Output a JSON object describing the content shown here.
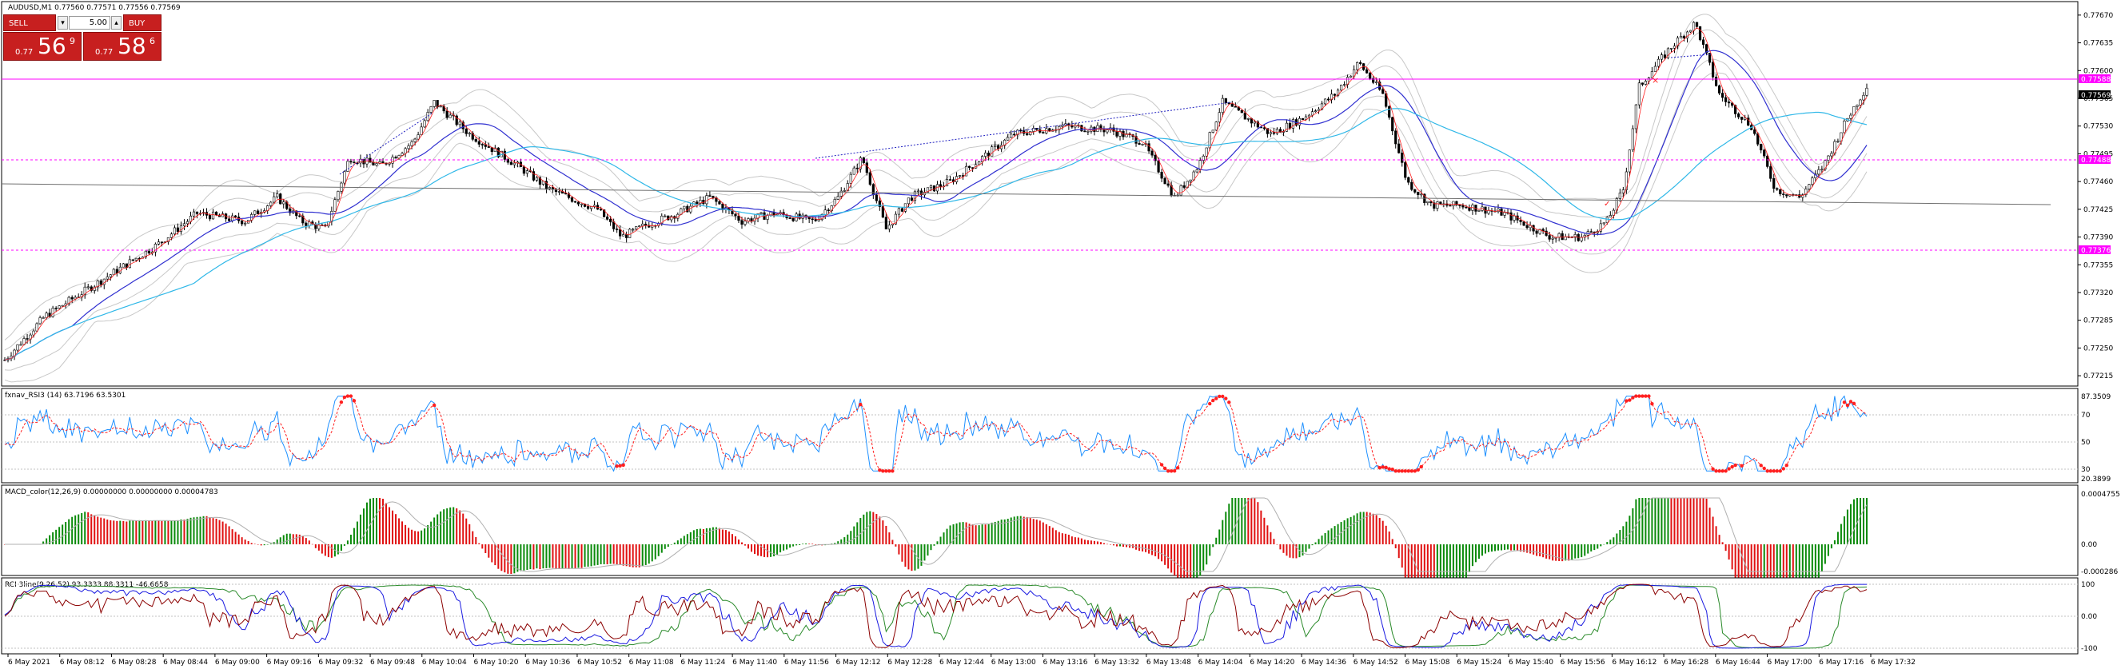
{
  "symbol_header": "AUDUSD,M1  0.77560 0.77571 0.77556 0.77569",
  "trade_panel": {
    "sell_label": "SELL",
    "buy_label": "BUY",
    "lot": "5.00",
    "minus": "▾",
    "plus": "▴",
    "bid": {
      "prefix": "0.77",
      "big": "56",
      "sup": "9"
    },
    "ask": {
      "prefix": "0.77",
      "big": "58",
      "sup": "6"
    }
  },
  "price_axis": [
    "0.77670",
    "0.77635",
    "0.77600",
    "0.77565",
    "0.77530",
    "0.77495",
    "0.77460",
    "0.77425",
    "0.77390",
    "0.77355",
    "0.77320",
    "0.77285",
    "0.77250",
    "0.77215"
  ],
  "price_tags": {
    "level_top": "0.77588",
    "current": "0.77569",
    "level_mid": "0.77488",
    "level_low": "0.77376"
  },
  "rsi": {
    "title": "fxnav_RSI3 (14) 63.7196 63.5301",
    "axis": [
      "87.3509",
      "70",
      "50",
      "30",
      "20.3899"
    ]
  },
  "macd": {
    "title": "MACD_color(12,26,9) 0.00000000 0.00000000 0.00004783",
    "axis": [
      "0.0004755",
      "0.00",
      "-0.000286"
    ]
  },
  "rci": {
    "title": "RCI 3line(9,26,52) 93.3333 88.3311 -46.6658",
    "axis": [
      "100",
      "0.00",
      "-100"
    ]
  },
  "time_axis": [
    "6 May 2021",
    "6 May 08:12",
    "6 May 08:28",
    "6 May 08:44",
    "6 May 09:00",
    "6 May 09:16",
    "6 May 09:32",
    "6 May 09:48",
    "6 May 10:04",
    "6 May 10:20",
    "6 May 10:36",
    "6 May 10:52",
    "6 May 11:08",
    "6 May 11:24",
    "6 May 11:40",
    "6 May 11:56",
    "6 May 12:12",
    "6 May 12:28",
    "6 May 12:44",
    "6 May 13:00",
    "6 May 13:16",
    "6 May 13:32",
    "6 May 13:48",
    "6 May 14:04",
    "6 May 14:20",
    "6 May 14:36",
    "6 May 14:52",
    "6 May 15:08",
    "6 May 15:24",
    "6 May 15:40",
    "6 May 15:56",
    "6 May 16:12",
    "6 May 16:28",
    "6 May 16:44",
    "6 May 17:00",
    "6 May 17:16",
    "6 May 17:32"
  ],
  "colors": {
    "magenta": "#ff00ff",
    "bull": "#000000",
    "sma_blue": "#3030d0",
    "sma_cyan": "#30b8e8",
    "bollinger": "#c8c8c8",
    "rsi_blue": "#1e90ff",
    "rsi_red": "#ff2020",
    "macd_up": "#0a8a0a",
    "macd_down": "#e01010",
    "rci_red": "#8b0000",
    "rci_blue": "#1a1ae0",
    "rci_green": "#2a8a2a"
  },
  "chart_data": {
    "type": "candlestick",
    "price_ylim": [
      0.77205,
      0.77685
    ],
    "price_path": [
      [
        0,
        0.77235
      ],
      [
        25,
        0.7729
      ],
      [
        60,
        0.77335
      ],
      [
        95,
        0.7738
      ],
      [
        120,
        0.7742
      ],
      [
        150,
        0.7741
      ],
      [
        170,
        0.7744
      ],
      [
        185,
        0.7741
      ],
      [
        200,
        0.774
      ],
      [
        215,
        0.7749
      ],
      [
        235,
        0.7748
      ],
      [
        255,
        0.7751
      ],
      [
        268,
        0.7756
      ],
      [
        290,
        0.7752
      ],
      [
        320,
        0.7748
      ],
      [
        340,
        0.7745
      ],
      [
        370,
        0.77425
      ],
      [
        385,
        0.7739
      ],
      [
        400,
        0.77405
      ],
      [
        420,
        0.7742
      ],
      [
        440,
        0.7744
      ],
      [
        460,
        0.7741
      ],
      [
        480,
        0.7742
      ],
      [
        505,
        0.7741
      ],
      [
        520,
        0.7744
      ],
      [
        535,
        0.7749
      ],
      [
        550,
        0.774
      ],
      [
        565,
        0.7744
      ],
      [
        590,
        0.7746
      ],
      [
        610,
        0.7749
      ],
      [
        630,
        0.7752
      ],
      [
        660,
        0.7753
      ],
      [
        690,
        0.77525
      ],
      [
        710,
        0.7751
      ],
      [
        730,
        0.7744
      ],
      [
        745,
        0.7748
      ],
      [
        760,
        0.7756
      ],
      [
        790,
        0.7752
      ],
      [
        810,
        0.7754
      ],
      [
        830,
        0.7757
      ],
      [
        845,
        0.7761
      ],
      [
        860,
        0.7757
      ],
      [
        875,
        0.7746
      ],
      [
        890,
        0.7743
      ],
      [
        910,
        0.7743
      ],
      [
        935,
        0.7742
      ],
      [
        950,
        0.77405
      ],
      [
        965,
        0.7739
      ],
      [
        985,
        0.7739
      ],
      [
        1000,
        0.7741
      ],
      [
        1010,
        0.7745
      ],
      [
        1020,
        0.7758
      ],
      [
        1040,
        0.7763
      ],
      [
        1055,
        0.7766
      ],
      [
        1070,
        0.7757
      ],
      [
        1090,
        0.7753
      ],
      [
        1105,
        0.7745
      ],
      [
        1120,
        0.7744
      ],
      [
        1135,
        0.7748
      ],
      [
        1150,
        0.7754
      ],
      [
        1162,
        0.7758
      ]
    ]
  }
}
